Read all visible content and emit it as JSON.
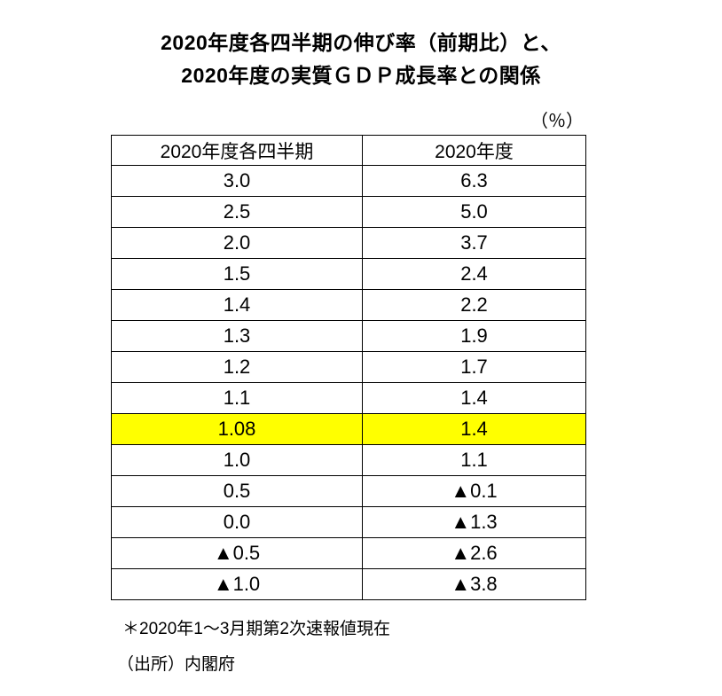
{
  "title": {
    "line1": "2020年度各四半期の伸び率（前期比）と、",
    "line2": "2020年度の実質ＧＤＰ成長率との関係"
  },
  "unit_label": "（％）",
  "table": {
    "columns": [
      "2020年度各四半期",
      "2020年度"
    ],
    "highlight_color": "#ffff00",
    "rows": [
      {
        "quarterly": "3.0",
        "annual": "6.3",
        "highlight": false
      },
      {
        "quarterly": "2.5",
        "annual": "5.0",
        "highlight": false
      },
      {
        "quarterly": "2.0",
        "annual": "3.7",
        "highlight": false
      },
      {
        "quarterly": "1.5",
        "annual": "2.4",
        "highlight": false
      },
      {
        "quarterly": "1.4",
        "annual": "2.2",
        "highlight": false
      },
      {
        "quarterly": "1.3",
        "annual": "1.9",
        "highlight": false
      },
      {
        "quarterly": "1.2",
        "annual": "1.7",
        "highlight": false
      },
      {
        "quarterly": "1.1",
        "annual": "1.4",
        "highlight": false
      },
      {
        "quarterly": "1.08",
        "annual": "1.4",
        "highlight": true
      },
      {
        "quarterly": "1.0",
        "annual": "1.1",
        "highlight": false
      },
      {
        "quarterly": "0.5",
        "annual": "▲0.1",
        "highlight": false
      },
      {
        "quarterly": "0.0",
        "annual": "▲1.3",
        "highlight": false
      },
      {
        "quarterly": "▲0.5",
        "annual": "▲2.6",
        "highlight": false
      },
      {
        "quarterly": "▲1.0",
        "annual": "▲3.8",
        "highlight": false
      }
    ]
  },
  "footnotes": {
    "note": "＊2020年1～3月期第2次速報値現在",
    "source": "（出所）内閣府"
  },
  "chart_data": {
    "type": "table",
    "title": "2020年度各四半期の伸び率（前期比）と、2020年度の実質ＧＤＰ成長率との関係",
    "unit": "％",
    "columns": [
      "2020年度各四半期",
      "2020年度"
    ],
    "rows_display": [
      [
        "3.0",
        "6.3"
      ],
      [
        "2.5",
        "5.0"
      ],
      [
        "2.0",
        "3.7"
      ],
      [
        "1.5",
        "2.4"
      ],
      [
        "1.4",
        "2.2"
      ],
      [
        "1.3",
        "1.9"
      ],
      [
        "1.2",
        "1.7"
      ],
      [
        "1.1",
        "1.4"
      ],
      [
        "1.08",
        "1.4"
      ],
      [
        "1.0",
        "1.1"
      ],
      [
        "0.5",
        "▲0.1"
      ],
      [
        "0.0",
        "▲1.3"
      ],
      [
        "▲0.5",
        "▲2.6"
      ],
      [
        "▲1.0",
        "▲3.8"
      ]
    ],
    "rows_numeric": [
      [
        3.0,
        6.3
      ],
      [
        2.5,
        5.0
      ],
      [
        2.0,
        3.7
      ],
      [
        1.5,
        2.4
      ],
      [
        1.4,
        2.2
      ],
      [
        1.3,
        1.9
      ],
      [
        1.2,
        1.7
      ],
      [
        1.1,
        1.4
      ],
      [
        1.08,
        1.4
      ],
      [
        1.0,
        1.1
      ],
      [
        0.5,
        -0.1
      ],
      [
        0.0,
        -1.3
      ],
      [
        -0.5,
        -2.6
      ],
      [
        -1.0,
        -3.8
      ]
    ],
    "negative_marker": "▲",
    "highlighted_row_index": 8,
    "highlight_color": "#ffff00",
    "notes": [
      "＊2020年1～3月期第2次速報値現在",
      "（出所）内閣府"
    ]
  }
}
